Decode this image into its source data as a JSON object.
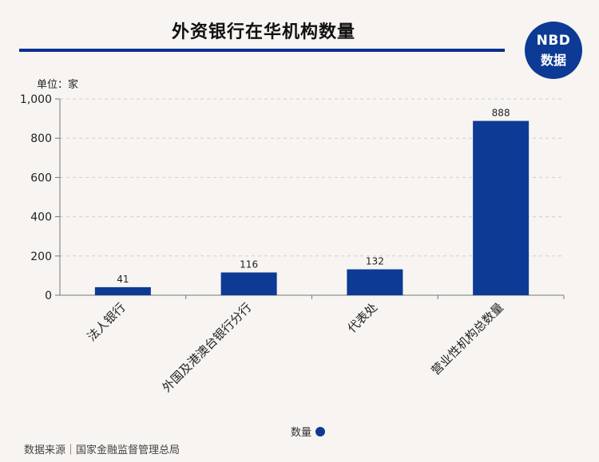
{
  "title": "外资银行在华机构数量",
  "logo": {
    "line1": "NBD",
    "line2": "数据"
  },
  "unit_label": "单位：家",
  "legend_label": "数量",
  "source": "数据来源｜国家金融监督管理总局",
  "colors": {
    "bar": "#0d3a94",
    "title_rule": "#0a2f8f",
    "grid": "#cfcfcf"
  },
  "chart_data": {
    "type": "bar",
    "categories": [
      "法人银行",
      "外国及港澳台银行分行",
      "代表处",
      "营业性机构总数量"
    ],
    "series": [
      {
        "name": "数量",
        "values": [
          41,
          116,
          132,
          888
        ]
      }
    ],
    "yticks": [
      "0",
      "200",
      "400",
      "600",
      "800",
      "1,000"
    ],
    "ylim": [
      0,
      1000
    ],
    "grid": true,
    "legend_position": "bottom"
  }
}
